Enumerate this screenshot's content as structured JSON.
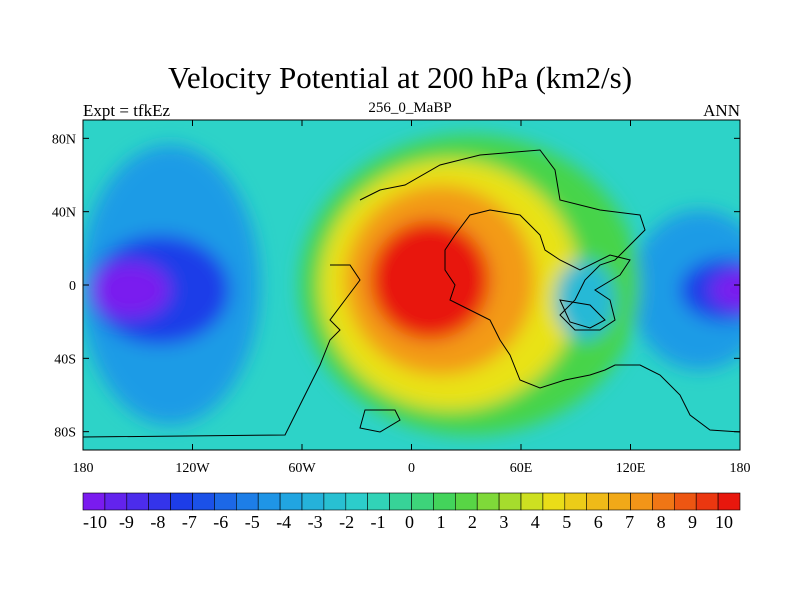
{
  "header": {
    "title": "Velocity Potential at 200 hPa (km2/s)",
    "left_string": "Expt = tfkEz",
    "center_string": "256_0_MaBP",
    "right_string": "ANN"
  },
  "colors": {
    "min": "#7a1bef",
    "low_blue": "#1a3ee8",
    "mid_blue": "#1f9be6",
    "cyan": "#2dd3c8",
    "green": "#47d44a",
    "yellow": "#e9e218",
    "orange": "#f39a18",
    "max": "#e8170d"
  },
  "chart_data": {
    "type": "heatmap",
    "title": "Velocity Potential at 200 hPa (km2/s)",
    "variable": "Velocity Potential at 200 hPa",
    "units": "km2/s",
    "xlim": [
      -180,
      180
    ],
    "ylim": [
      -90,
      90
    ],
    "x_ticks": [
      {
        "value": -180,
        "label": "180"
      },
      {
        "value": -120,
        "label": "120W"
      },
      {
        "value": -60,
        "label": "60W"
      },
      {
        "value": 0,
        "label": "0"
      },
      {
        "value": 60,
        "label": "60E"
      },
      {
        "value": 120,
        "label": "120E"
      },
      {
        "value": 180,
        "label": "180"
      }
    ],
    "y_ticks": [
      {
        "value": 80,
        "label": "80N"
      },
      {
        "value": 40,
        "label": "40N"
      },
      {
        "value": 0,
        "label": "0"
      },
      {
        "value": -40,
        "label": "40S"
      },
      {
        "value": -80,
        "label": "80S"
      }
    ],
    "colorbar": {
      "labels": [
        "-10",
        "-9",
        "-8",
        "-7",
        "-6",
        "-5",
        "-4",
        "-3",
        "-2",
        "-1",
        "0",
        "1",
        "2",
        "3",
        "4",
        "5",
        "6",
        "7",
        "8",
        "9",
        "10"
      ],
      "n_boxes": 30,
      "orientation": "horizontal"
    },
    "extrema": [
      {
        "kind": "maximum",
        "lon": 10,
        "lat": 0,
        "value": 10
      },
      {
        "kind": "minimum",
        "lon": 180,
        "lat": 0,
        "value": -10
      },
      {
        "kind": "minimum",
        "lon": -150,
        "lat": -10,
        "value": -9
      }
    ]
  }
}
